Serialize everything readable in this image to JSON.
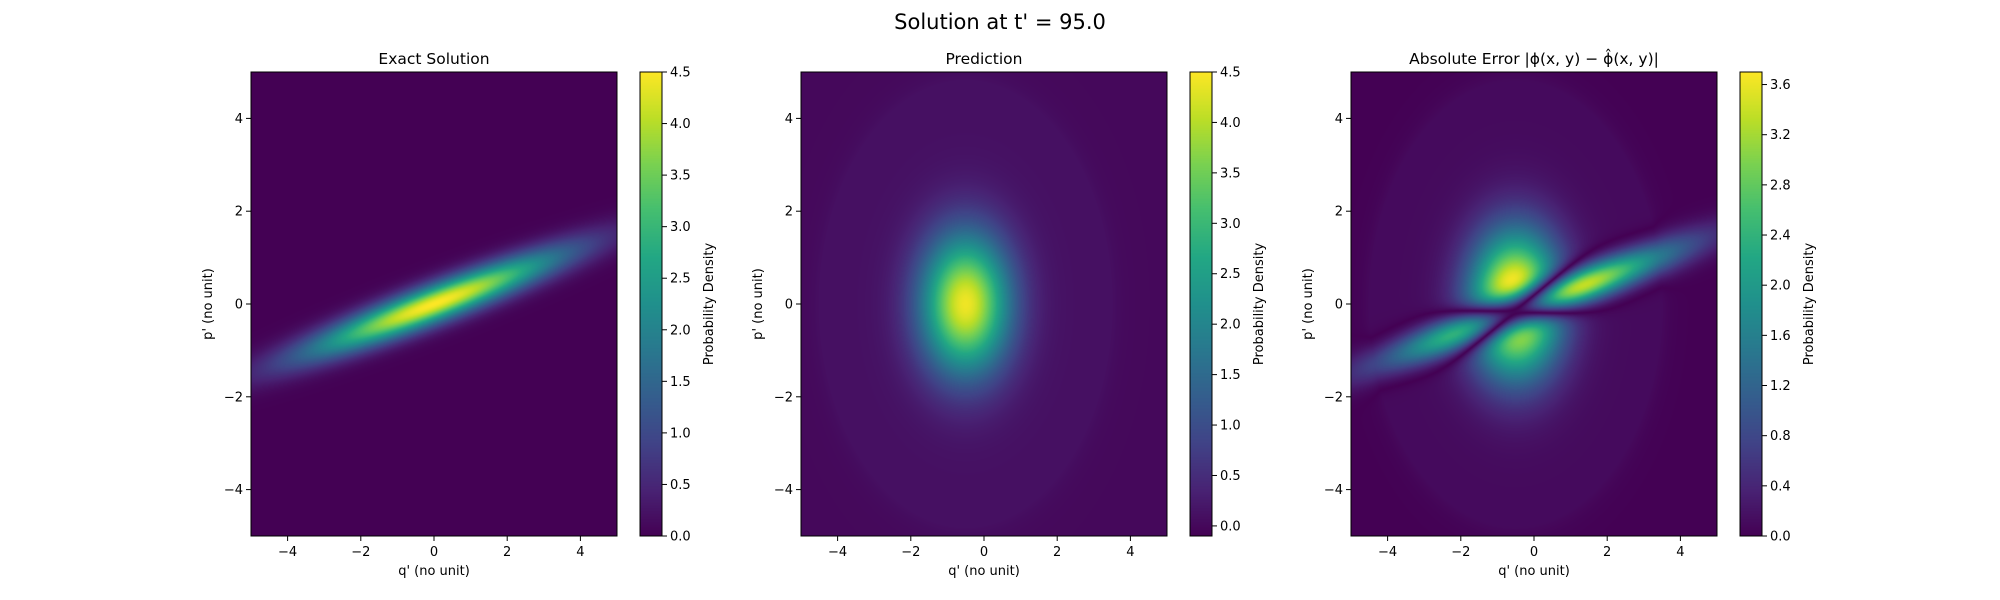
{
  "figure": {
    "suptitle": "Solution at t' = 95.0"
  },
  "chart_data": [
    {
      "type": "heatmap",
      "title": "Exact Solution",
      "xlabel": "q' (no unit)",
      "ylabel": "p' (no unit)",
      "xlim": [
        -5,
        5
      ],
      "ylim": [
        -5,
        5
      ],
      "xticks": [
        "−4",
        "−2",
        "0",
        "2",
        "4"
      ],
      "yticks": [
        "−4",
        "−2",
        "0",
        "2",
        "4"
      ],
      "colormap": "viridis",
      "grid": false,
      "colorbar": {
        "label": "Probability Density",
        "range": [
          0.0,
          4.5
        ],
        "ticks": [
          "0.0",
          "0.5",
          "1.0",
          "1.5",
          "2.0",
          "2.5",
          "3.0",
          "3.5",
          "4.0",
          "4.5"
        ]
      },
      "field": {
        "shape": "rotated elongated gaussian",
        "center": [
          0,
          0
        ],
        "peak": 4.5,
        "slope_dp_dq": 0.3,
        "sigma_along": 2.5,
        "sigma_across": 0.28
      }
    },
    {
      "type": "heatmap",
      "title": "Prediction",
      "xlabel": "q' (no unit)",
      "ylabel": "p' (no unit)",
      "xlim": [
        -5,
        5
      ],
      "ylim": [
        -5,
        5
      ],
      "xticks": [
        "−4",
        "−2",
        "0",
        "2",
        "4"
      ],
      "yticks": [
        "−4",
        "−2",
        "0",
        "2",
        "4"
      ],
      "colormap": "viridis",
      "grid": false,
      "colorbar": {
        "label": "Probability Density",
        "range": [
          -0.1,
          4.5
        ],
        "ticks": [
          "0.0",
          "0.5",
          "1.0",
          "1.5",
          "2.0",
          "2.5",
          "3.0",
          "3.5",
          "4.0",
          "4.5"
        ]
      },
      "field": {
        "shape": "gaussian",
        "center": [
          -0.5,
          0
        ],
        "peak": 4.3,
        "sigma_q": 0.85,
        "sigma_p": 1.05,
        "halo_value": 0.1,
        "halo_radius": 4.0
      }
    },
    {
      "type": "heatmap",
      "title": "Absolute Error |ϕ(x, y) − ϕ̂(x, y)|",
      "xlabel": "q' (no unit)",
      "ylabel": "p' (no unit)",
      "xlim": [
        -5,
        5
      ],
      "ylim": [
        -5,
        5
      ],
      "xticks": [
        "−4",
        "−2",
        "0",
        "2",
        "4"
      ],
      "yticks": [
        "−4",
        "−2",
        "0",
        "2",
        "4"
      ],
      "colormap": "viridis",
      "grid": false,
      "colorbar": {
        "label": "Probability Density",
        "range": [
          0.0,
          3.7
        ],
        "ticks": [
          "0.0",
          "0.4",
          "0.8",
          "1.2",
          "1.6",
          "2.0",
          "2.4",
          "2.8",
          "3.2",
          "3.6"
        ]
      },
      "field": {
        "shape": "absolute difference of panel 1 and panel 2",
        "peak": 3.7
      }
    }
  ]
}
